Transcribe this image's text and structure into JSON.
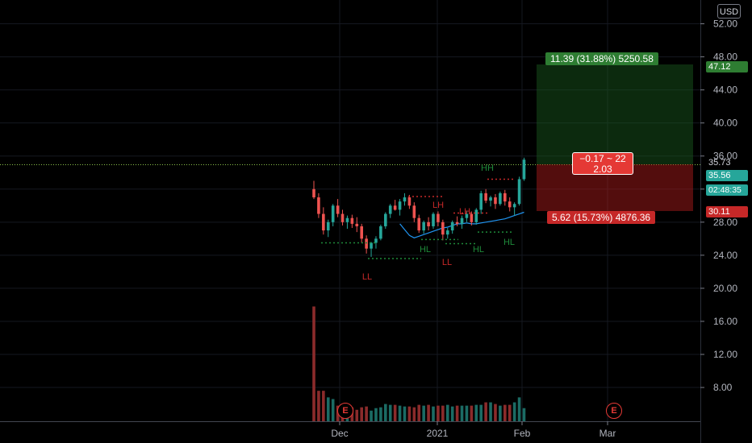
{
  "currency_button": "USD",
  "y_axis": {
    "ticks": [
      "52.00",
      "48.00",
      "44.00",
      "40.00",
      "36.00",
      "32.00",
      "28.00",
      "24.00",
      "20.00",
      "16.00",
      "12.00",
      "8.00"
    ],
    "range": [
      4.4,
      54
    ]
  },
  "x_axis": {
    "ticks": [
      "Dec",
      "2021",
      "Feb",
      "Mar"
    ]
  },
  "price_tags": {
    "target": "47.12",
    "current_price": "35.73",
    "last": "35.56",
    "countdown": "02:48:35",
    "stop": "30.11"
  },
  "position": {
    "profit_label": "11.39 (31.88%) 5250.58",
    "loss_label": "5.62 (15.73%) 4876.36",
    "center_line1": "−0.17 ~ 22",
    "center_line2": "2.03",
    "entry": 35.73,
    "target": 47.12,
    "stop": 30.11
  },
  "pattern_labels": [
    "LL",
    "HL",
    "LH",
    "LL",
    "LH",
    "HL",
    "HH",
    "HL"
  ],
  "earnings_markers": [
    "E",
    "E"
  ],
  "colors": {
    "up": "#26a69a",
    "down": "#ef5350",
    "up_vol": "#1b6b64",
    "down_vol": "#8b2b2b",
    "ma": "#2196f3",
    "profit": "#2e7d32",
    "loss": "#c62828"
  },
  "chart_data": {
    "type": "candlestick",
    "series": [
      {
        "name": "price",
        "ohlc": [
          [
            32.0,
            33.0,
            30.8,
            31.0
          ],
          [
            31.0,
            31.5,
            28.5,
            29.0
          ],
          [
            29.0,
            29.8,
            26.5,
            27.0
          ],
          [
            27.0,
            28.3,
            26.2,
            28.0
          ],
          [
            28.0,
            30.2,
            27.5,
            30.0
          ],
          [
            30.0,
            30.8,
            28.6,
            29.0
          ],
          [
            29.0,
            29.5,
            27.6,
            28.0
          ],
          [
            28.0,
            28.8,
            27.2,
            28.5
          ],
          [
            28.5,
            28.9,
            27.3,
            27.8
          ],
          [
            27.8,
            28.6,
            26.8,
            27.5
          ],
          [
            27.5,
            27.8,
            25.5,
            26.0
          ],
          [
            26.0,
            26.4,
            24.2,
            24.8
          ],
          [
            24.8,
            25.6,
            23.8,
            25.5
          ],
          [
            25.5,
            26.3,
            24.8,
            26.0
          ],
          [
            26.0,
            27.7,
            25.8,
            27.5
          ],
          [
            27.5,
            29.2,
            27.2,
            29.0
          ],
          [
            29.0,
            30.2,
            28.5,
            30.0
          ],
          [
            30.0,
            30.7,
            29.4,
            29.5
          ],
          [
            29.5,
            30.8,
            28.8,
            30.5
          ],
          [
            30.5,
            31.5,
            30.0,
            31.0
          ],
          [
            31.0,
            31.3,
            29.6,
            30.0
          ],
          [
            30.0,
            30.4,
            28.0,
            28.5
          ],
          [
            28.5,
            28.9,
            26.7,
            27.0
          ],
          [
            27.0,
            28.2,
            26.6,
            28.0
          ],
          [
            28.0,
            28.6,
            27.0,
            27.5
          ],
          [
            27.5,
            29.2,
            27.2,
            29.0
          ],
          [
            29.0,
            29.3,
            27.5,
            28.0
          ],
          [
            28.0,
            28.3,
            25.8,
            26.5
          ],
          [
            26.5,
            27.3,
            26.0,
            27.0
          ],
          [
            27.0,
            28.2,
            26.6,
            28.0
          ],
          [
            28.0,
            28.7,
            27.5,
            27.8
          ],
          [
            27.8,
            28.8,
            27.2,
            28.5
          ],
          [
            28.5,
            29.4,
            28.0,
            29.0
          ],
          [
            29.0,
            29.3,
            27.6,
            28.0
          ],
          [
            28.0,
            29.7,
            27.7,
            29.5
          ],
          [
            29.5,
            31.8,
            29.0,
            31.5
          ],
          [
            31.5,
            32.0,
            30.3,
            30.6
          ],
          [
            30.6,
            31.2,
            29.9,
            31.0
          ],
          [
            31.0,
            31.4,
            29.6,
            30.2
          ],
          [
            30.2,
            31.7,
            30.0,
            31.5
          ],
          [
            31.5,
            31.9,
            30.0,
            30.5
          ],
          [
            30.5,
            31.0,
            29.3,
            29.8
          ],
          [
            29.8,
            30.4,
            28.8,
            30.2
          ],
          [
            30.2,
            33.5,
            30.0,
            33.2
          ],
          [
            33.2,
            35.8,
            33.0,
            35.56
          ]
        ]
      },
      {
        "name": "volume",
        "values": [
          17.8,
          7.6,
          7.6,
          6.8,
          6.6,
          5.8,
          5.5,
          5.6,
          5.6,
          5.3,
          5.6,
          5.7,
          5.2,
          5.5,
          5.6,
          6.0,
          5.9,
          5.9,
          5.8,
          5.7,
          5.7,
          5.6,
          5.9,
          5.8,
          5.9,
          5.7,
          5.8,
          5.8,
          5.9,
          5.7,
          5.8,
          5.8,
          5.8,
          5.8,
          5.9,
          5.9,
          6.2,
          6.2,
          6.0,
          5.8,
          5.9,
          5.9,
          6.2,
          6.8,
          5.5
        ]
      }
    ],
    "moving_average": [
      27.8,
      27.1,
      26.4,
      26.1,
      26.3,
      26.5,
      26.7,
      26.9,
      27.1,
      27.3,
      27.4,
      27.6,
      27.8,
      27.8,
      27.9,
      27.8,
      27.8,
      27.9,
      28.0,
      28.1,
      28.2,
      28.3,
      28.4,
      28.6,
      28.8,
      29.0,
      29.2
    ],
    "ylim": [
      4.4,
      54
    ]
  }
}
